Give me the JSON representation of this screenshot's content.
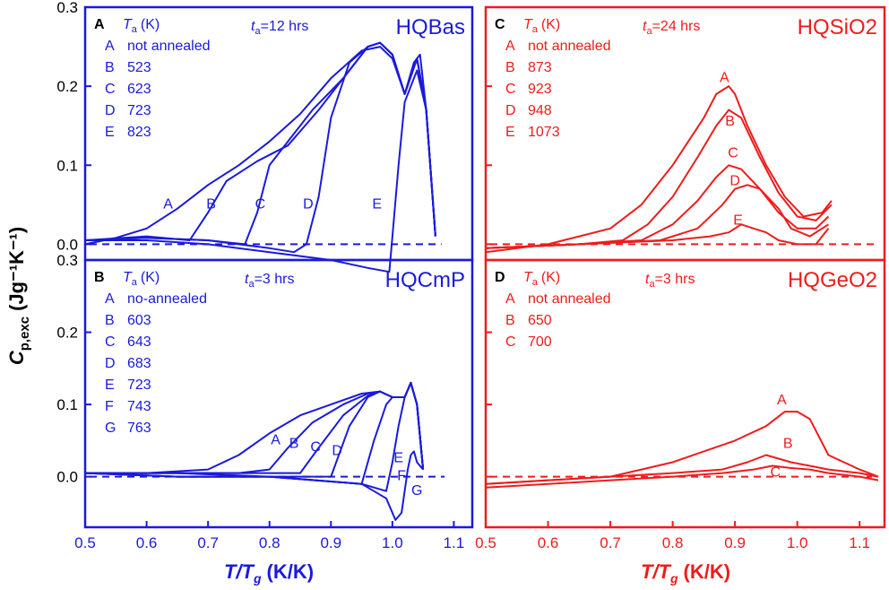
{
  "figure": {
    "ylabel_main": "C",
    "ylabel_sub": "p,exc",
    "ylabel_units": "(Jg⁻¹K⁻¹)",
    "xlabel_main": "T/T",
    "xlabel_sub": "g",
    "xlabel_units": "(K/K)",
    "left_color": "#1a1adb",
    "right_color": "#ee1c1c"
  },
  "chart_data": [
    {
      "id": "A",
      "panel_letter": "A",
      "title": "HQBas",
      "type": "line",
      "header": "T",
      "header_sub": "a",
      "header_units": "(K)",
      "time_label": "t",
      "time_sub": "a",
      "time_value": "=12 hrs",
      "legend": [
        [
          "A",
          "not annealed"
        ],
        [
          "B",
          "523"
        ],
        [
          "C",
          "623"
        ],
        [
          "D",
          "723"
        ],
        [
          "E",
          "823"
        ]
      ],
      "xlim": [
        0.5,
        1.13
      ],
      "ylim": [
        -0.02,
        0.3
      ],
      "yticks": [
        "0.0",
        "0.1",
        "0.2",
        "0.3"
      ],
      "ytick_values": [
        0.0,
        0.1,
        0.2,
        0.3
      ],
      "baseline": 0.0,
      "curve_labels": [
        {
          "text": "A",
          "x": 0.635,
          "y": 0.045
        },
        {
          "text": "B",
          "x": 0.705,
          "y": 0.045
        },
        {
          "text": "C",
          "x": 0.785,
          "y": 0.045
        },
        {
          "text": "D",
          "x": 0.863,
          "y": 0.045
        },
        {
          "text": "E",
          "x": 0.975,
          "y": 0.045
        }
      ],
      "series": [
        {
          "name": "A",
          "x": [
            0.5,
            0.55,
            0.6,
            0.65,
            0.7,
            0.75,
            0.8,
            0.85,
            0.9,
            0.95,
            0.98,
            1.0,
            1.02,
            1.035,
            1.045,
            1.055,
            1.07
          ],
          "y": [
            0.0,
            0.008,
            0.02,
            0.045,
            0.075,
            0.1,
            0.13,
            0.165,
            0.21,
            0.245,
            0.25,
            0.235,
            0.19,
            0.23,
            0.24,
            0.17,
            0.01
          ]
        },
        {
          "name": "B",
          "x": [
            0.5,
            0.6,
            0.67,
            0.7,
            0.73,
            0.78,
            0.83,
            0.88,
            0.93,
            0.96,
            0.98,
            1.0,
            1.02,
            1.04,
            1.055,
            1.07
          ],
          "y": [
            0.005,
            0.01,
            0.005,
            0.04,
            0.08,
            0.105,
            0.125,
            0.17,
            0.22,
            0.25,
            0.255,
            0.24,
            0.19,
            0.235,
            0.17,
            0.01
          ]
        },
        {
          "name": "C",
          "x": [
            0.5,
            0.6,
            0.7,
            0.76,
            0.78,
            0.8,
            0.83,
            0.87,
            0.92,
            0.96,
            0.98,
            1.0,
            1.02,
            1.04,
            1.055,
            1.07
          ],
          "y": [
            0.005,
            0.008,
            0.005,
            0.0,
            0.04,
            0.1,
            0.13,
            0.17,
            0.21,
            0.25,
            0.255,
            0.24,
            0.19,
            0.235,
            0.17,
            0.01
          ]
        },
        {
          "name": "D",
          "x": [
            0.5,
            0.6,
            0.7,
            0.8,
            0.84,
            0.86,
            0.88,
            0.9,
            0.93,
            0.96,
            0.98,
            1.0,
            1.02,
            1.04,
            1.055,
            1.07
          ],
          "y": [
            0.005,
            0.008,
            0.005,
            -0.005,
            -0.01,
            0.0,
            0.06,
            0.16,
            0.23,
            0.25,
            0.255,
            0.24,
            0.19,
            0.235,
            0.17,
            0.01
          ]
        },
        {
          "name": "E",
          "x": [
            0.5,
            0.6,
            0.7,
            0.8,
            0.9,
            0.96,
            0.995,
            1.0,
            1.01,
            1.02,
            1.04,
            1.055,
            1.07
          ],
          "y": [
            0.005,
            0.005,
            0.0,
            -0.01,
            -0.02,
            -0.03,
            -0.035,
            0.01,
            0.1,
            0.18,
            0.22,
            0.17,
            0.01
          ]
        }
      ]
    },
    {
      "id": "B",
      "panel_letter": "B",
      "title": "HQCmP",
      "type": "line",
      "header": "T",
      "header_sub": "a",
      "header_units": "(K)",
      "time_label": "t",
      "time_sub": "a",
      "time_value": "=3 hrs",
      "legend": [
        [
          "A",
          "no-annealed"
        ],
        [
          "B",
          "603"
        ],
        [
          "C",
          "643"
        ],
        [
          "D",
          "683"
        ],
        [
          "E",
          "723"
        ],
        [
          "F",
          "743"
        ],
        [
          "G",
          "763"
        ]
      ],
      "xlim": [
        0.5,
        1.13
      ],
      "ylim": [
        -0.07,
        0.3
      ],
      "yticks": [
        "0.0",
        "0.1",
        "0.2",
        "0.3"
      ],
      "ytick_values": [
        0.0,
        0.1,
        0.2,
        0.3
      ],
      "xticks": [
        "0.5",
        "0.6",
        "0.7",
        "0.8",
        "0.9",
        "1.0",
        "1.1"
      ],
      "xtick_values": [
        0.5,
        0.6,
        0.7,
        0.8,
        0.9,
        1.0,
        1.1
      ],
      "baseline": 0.0,
      "curve_labels": [
        {
          "text": "A",
          "x": 0.81,
          "y": 0.045
        },
        {
          "text": "B",
          "x": 0.84,
          "y": 0.04
        },
        {
          "text": "C",
          "x": 0.875,
          "y": 0.035
        },
        {
          "text": "D",
          "x": 0.91,
          "y": 0.03
        },
        {
          "text": "E",
          "x": 1.01,
          "y": 0.02
        },
        {
          "text": "F",
          "x": 1.015,
          "y": -0.005
        },
        {
          "text": "G",
          "x": 1.04,
          "y": -0.025
        }
      ],
      "series": [
        {
          "name": "A",
          "x": [
            0.5,
            0.6,
            0.7,
            0.75,
            0.8,
            0.85,
            0.9,
            0.95,
            0.98,
            1.0,
            1.02,
            1.03,
            1.04,
            1.05
          ],
          "y": [
            0.005,
            0.005,
            0.01,
            0.03,
            0.06,
            0.085,
            0.1,
            0.115,
            0.118,
            0.11,
            0.11,
            0.13,
            0.1,
            0.01
          ]
        },
        {
          "name": "B",
          "x": [
            0.5,
            0.65,
            0.75,
            0.8,
            0.83,
            0.87,
            0.92,
            0.96,
            0.98,
            1.0,
            1.02,
            1.03,
            1.04,
            1.05
          ],
          "y": [
            0.005,
            0.005,
            0.005,
            0.01,
            0.04,
            0.075,
            0.1,
            0.115,
            0.118,
            0.11,
            0.11,
            0.13,
            0.1,
            0.01
          ]
        },
        {
          "name": "C",
          "x": [
            0.5,
            0.65,
            0.8,
            0.85,
            0.88,
            0.92,
            0.96,
            0.98,
            1.0,
            1.02,
            1.03,
            1.04,
            1.05
          ],
          "y": [
            0.005,
            0.005,
            0.005,
            0.005,
            0.04,
            0.085,
            0.112,
            0.118,
            0.11,
            0.11,
            0.13,
            0.1,
            0.01
          ]
        },
        {
          "name": "D",
          "x": [
            0.5,
            0.65,
            0.8,
            0.9,
            0.93,
            0.96,
            0.98,
            1.0,
            1.02,
            1.03,
            1.04,
            1.05
          ],
          "y": [
            0.005,
            0.005,
            0.0,
            0.0,
            0.07,
            0.11,
            0.118,
            0.11,
            0.11,
            0.13,
            0.1,
            0.01
          ]
        },
        {
          "name": "E",
          "x": [
            0.5,
            0.65,
            0.8,
            0.95,
            0.97,
            0.99,
            1.0,
            1.02,
            1.03,
            1.04,
            1.05
          ],
          "y": [
            0.005,
            0.0,
            0.0,
            -0.01,
            0.05,
            0.1,
            0.11,
            0.11,
            0.13,
            0.1,
            0.01
          ]
        },
        {
          "name": "F",
          "x": [
            0.5,
            0.65,
            0.8,
            0.95,
            0.99,
            1.0,
            1.01,
            1.02,
            1.03,
            1.04,
            1.05
          ],
          "y": [
            0.005,
            0.0,
            0.0,
            -0.01,
            -0.02,
            0.02,
            0.07,
            0.11,
            0.13,
            0.1,
            0.01
          ]
        },
        {
          "name": "G",
          "x": [
            0.5,
            0.65,
            0.8,
            0.95,
            0.99,
            1.005,
            1.015,
            1.025,
            1.03,
            1.035,
            1.04,
            1.05
          ],
          "y": [
            0.005,
            0.0,
            0.0,
            -0.01,
            -0.03,
            -0.06,
            -0.05,
            0.01,
            0.03,
            0.035,
            0.02,
            0.01
          ]
        }
      ]
    },
    {
      "id": "C",
      "panel_letter": "C",
      "title": "HQSiO2",
      "type": "line",
      "header": "T",
      "header_sub": "a",
      "header_units": "(K)",
      "time_label": "t",
      "time_sub": "a",
      "time_value": "=24 hrs",
      "legend": [
        [
          "A",
          "not annealed"
        ],
        [
          "B",
          "873"
        ],
        [
          "C",
          "923"
        ],
        [
          "D",
          "948"
        ],
        [
          "E",
          "1073"
        ]
      ],
      "xlim": [
        0.5,
        1.14
      ],
      "ylim": [
        -0.02,
        0.3
      ],
      "baseline": 0.0,
      "curve_labels": [
        {
          "text": "A",
          "x": 0.883,
          "y": 0.205
        },
        {
          "text": "B",
          "x": 0.892,
          "y": 0.15
        },
        {
          "text": "C",
          "x": 0.897,
          "y": 0.11
        },
        {
          "text": "D",
          "x": 0.9,
          "y": 0.075
        },
        {
          "text": "E",
          "x": 0.905,
          "y": 0.025
        }
      ],
      "series": [
        {
          "name": "A",
          "x": [
            0.5,
            0.6,
            0.65,
            0.7,
            0.75,
            0.8,
            0.85,
            0.87,
            0.89,
            0.9,
            0.92,
            0.95,
            0.98,
            1.01,
            1.04,
            1.055
          ],
          "y": [
            -0.01,
            0.0,
            0.01,
            0.02,
            0.05,
            0.1,
            0.16,
            0.19,
            0.2,
            0.19,
            0.15,
            0.1,
            0.06,
            0.035,
            0.04,
            0.055
          ]
        },
        {
          "name": "B",
          "x": [
            0.5,
            0.65,
            0.72,
            0.76,
            0.8,
            0.84,
            0.87,
            0.89,
            0.91,
            0.94,
            0.97,
            1.0,
            1.03,
            1.055
          ],
          "y": [
            -0.005,
            0.0,
            0.005,
            0.025,
            0.06,
            0.11,
            0.15,
            0.17,
            0.16,
            0.11,
            0.065,
            0.035,
            0.03,
            0.05
          ]
        },
        {
          "name": "C",
          "x": [
            0.5,
            0.65,
            0.75,
            0.8,
            0.84,
            0.87,
            0.89,
            0.91,
            0.94,
            0.97,
            1.0,
            1.03,
            1.05
          ],
          "y": [
            -0.005,
            0.0,
            0.005,
            0.025,
            0.055,
            0.085,
            0.1,
            0.095,
            0.07,
            0.04,
            0.02,
            0.02,
            0.035
          ]
        },
        {
          "name": "D",
          "x": [
            0.5,
            0.65,
            0.78,
            0.84,
            0.88,
            0.9,
            0.92,
            0.94,
            0.97,
            0.99,
            1.02,
            1.05
          ],
          "y": [
            -0.005,
            0.0,
            0.005,
            0.02,
            0.05,
            0.07,
            0.075,
            0.07,
            0.045,
            0.02,
            0.01,
            0.025
          ]
        },
        {
          "name": "E",
          "x": [
            0.5,
            0.65,
            0.8,
            0.86,
            0.89,
            0.91,
            0.93,
            0.95,
            0.97,
            1.0,
            1.03,
            1.05
          ],
          "y": [
            -0.005,
            0.0,
            0.005,
            0.01,
            0.015,
            0.025,
            0.02,
            0.015,
            0.005,
            0.0,
            0.0,
            0.02
          ]
        }
      ]
    },
    {
      "id": "D",
      "panel_letter": "D",
      "title": "HQGeO2",
      "type": "line",
      "header": "T",
      "header_sub": "a",
      "header_units": "(K)",
      "time_label": "t",
      "time_sub": "a",
      "time_value": "=3 hrs",
      "legend": [
        [
          "A",
          "not annealed"
        ],
        [
          "B",
          "650"
        ],
        [
          "C",
          "700"
        ]
      ],
      "xlim": [
        0.5,
        1.14
      ],
      "ylim": [
        -0.07,
        0.3
      ],
      "xticks": [
        "0.5",
        "0.6",
        "0.7",
        "0.8",
        "0.9",
        "1.0",
        "1.1"
      ],
      "xtick_values": [
        0.5,
        0.6,
        0.7,
        0.8,
        0.9,
        1.0,
        1.1
      ],
      "baseline": 0.0,
      "curve_labels": [
        {
          "text": "A",
          "x": 0.975,
          "y": 0.1
        },
        {
          "text": "B",
          "x": 0.985,
          "y": 0.04
        },
        {
          "text": "C",
          "x": 0.965,
          "y": 0.0
        }
      ],
      "series": [
        {
          "name": "A",
          "x": [
            0.5,
            0.6,
            0.7,
            0.75,
            0.8,
            0.85,
            0.9,
            0.95,
            0.98,
            1.0,
            1.02,
            1.05,
            1.1,
            1.13
          ],
          "y": [
            -0.01,
            -0.005,
            0.0,
            0.01,
            0.02,
            0.035,
            0.05,
            0.07,
            0.09,
            0.09,
            0.08,
            0.03,
            0.01,
            0.0
          ]
        },
        {
          "name": "B",
          "x": [
            0.5,
            0.6,
            0.7,
            0.8,
            0.88,
            0.92,
            0.95,
            0.97,
            0.99,
            1.02,
            1.05,
            1.1,
            1.13
          ],
          "y": [
            -0.01,
            -0.005,
            0.0,
            0.005,
            0.01,
            0.02,
            0.03,
            0.025,
            0.02,
            0.015,
            0.01,
            0.005,
            0.0
          ]
        },
        {
          "name": "C",
          "x": [
            0.5,
            0.6,
            0.7,
            0.8,
            0.88,
            0.93,
            0.96,
            0.99,
            1.02,
            1.05,
            1.1,
            1.13
          ],
          "y": [
            -0.015,
            -0.01,
            -0.005,
            0.0,
            0.005,
            0.01,
            0.015,
            0.012,
            0.01,
            0.005,
            0.0,
            -0.005
          ]
        }
      ]
    }
  ]
}
